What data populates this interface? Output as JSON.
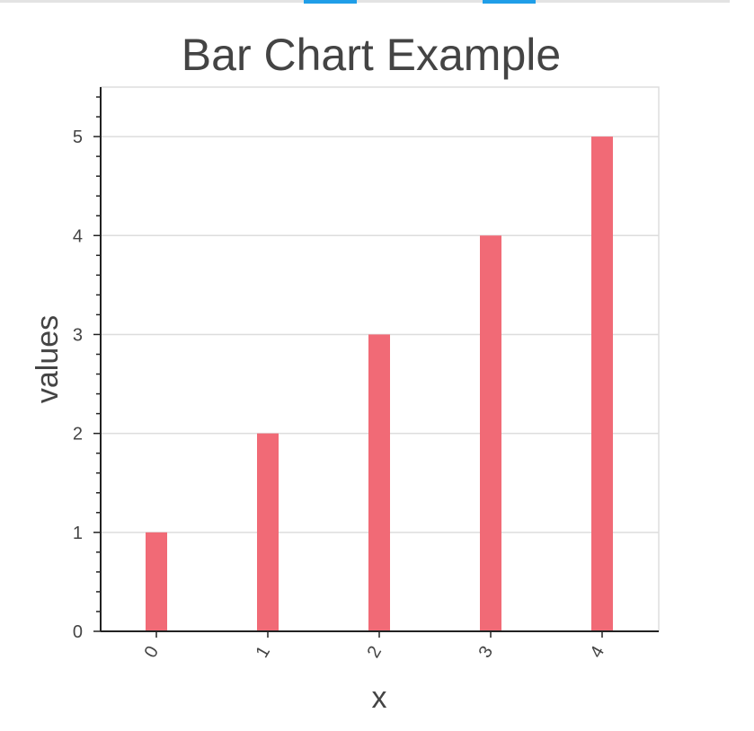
{
  "chart_data": {
    "type": "bar",
    "title": "Bar Chart Example",
    "xlabel": "x",
    "ylabel": "values",
    "categories": [
      "0",
      "1",
      "2",
      "3",
      "4"
    ],
    "values": [
      1,
      2,
      3,
      4,
      5
    ],
    "ylim": [
      0,
      5.5
    ],
    "yticks": [
      0,
      1,
      2,
      3,
      4,
      5
    ],
    "grid": true,
    "legend": "none",
    "bar_color": "#f16a76",
    "grid_color": "#dddddd",
    "axis_color": "#222222",
    "text_color": "#444444"
  },
  "toolbar": {
    "strip_color": "#e3e3e3",
    "indicator_color": "#1f9ee8"
  }
}
